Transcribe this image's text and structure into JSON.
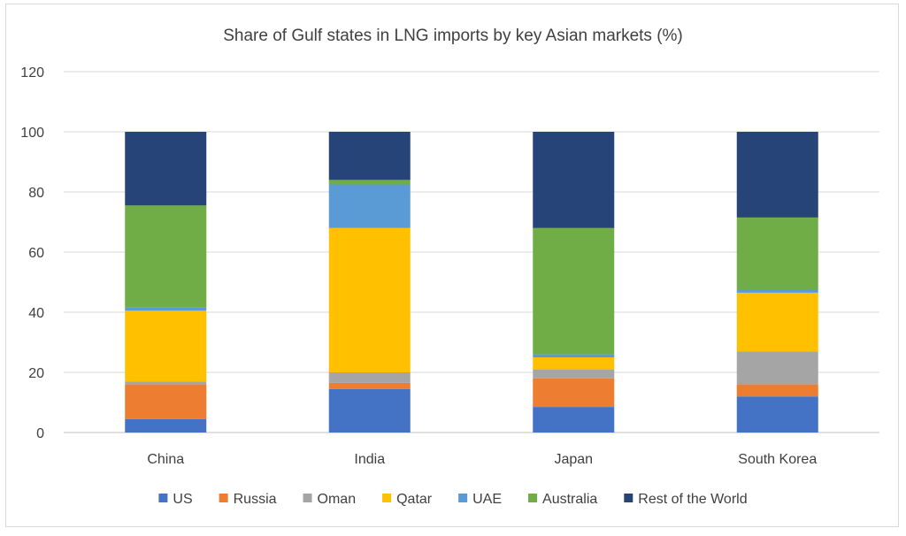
{
  "chart_data": {
    "type": "bar",
    "stacked": true,
    "title": "Share of Gulf states in LNG imports by key Asian markets (%)",
    "xlabel": "",
    "ylabel": "",
    "ylim": [
      0,
      120
    ],
    "yticks": [
      0,
      20,
      40,
      60,
      80,
      100,
      120
    ],
    "grid": true,
    "legend_position": "bottom",
    "categories": [
      "China",
      "India",
      "Japan",
      "South Korea"
    ],
    "series": [
      {
        "name": "US",
        "color": "#4472c4",
        "values": [
          4.5,
          14.5,
          8.5,
          12
        ]
      },
      {
        "name": "Russia",
        "color": "#ed7d31",
        "values": [
          11.5,
          2,
          9.5,
          4
        ]
      },
      {
        "name": "Oman",
        "color": "#a5a5a5",
        "values": [
          1,
          3.5,
          3,
          11
        ]
      },
      {
        "name": "Qatar",
        "color": "#ffc000",
        "values": [
          23.5,
          48,
          4,
          19.5
        ]
      },
      {
        "name": "UAE",
        "color": "#5b9bd5",
        "values": [
          1,
          14.5,
          1,
          1
        ]
      },
      {
        "name": "Australia",
        "color": "#70ad47",
        "values": [
          34,
          1.5,
          42,
          24
        ]
      },
      {
        "name": "Rest of the World",
        "color": "#264478",
        "values": [
          24.5,
          16,
          32,
          28.5
        ]
      }
    ]
  }
}
